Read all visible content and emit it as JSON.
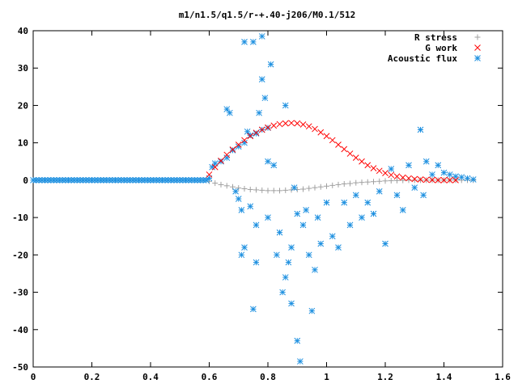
{
  "chart_data": {
    "type": "scatter",
    "title": "m1/n1.5/q1.5/r-+.40-j206/M0.1/512",
    "xlim": [
      0,
      1.6
    ],
    "ylim": [
      -50,
      40
    ],
    "xticks": [
      "0",
      "0.2",
      "0.4",
      "0.6",
      "0.8",
      "1",
      "1.2",
      "1.4",
      "1.6"
    ],
    "yticks": [
      "40",
      "30",
      "20",
      "10",
      "0",
      "-10",
      "-20",
      "-30",
      "-40",
      "-50"
    ],
    "legend_position": "top-right",
    "grid": false,
    "series": [
      {
        "name": "R stress",
        "marker": "plus",
        "color": "#a0a0a0",
        "points": [
          [
            0.6,
            -0.3
          ],
          [
            0.62,
            -0.8
          ],
          [
            0.64,
            -1.2
          ],
          [
            0.66,
            -1.5
          ],
          [
            0.68,
            -1.8
          ],
          [
            0.7,
            -2.1
          ],
          [
            0.72,
            -2.3
          ],
          [
            0.74,
            -2.5
          ],
          [
            0.76,
            -2.6
          ],
          [
            0.78,
            -2.7
          ],
          [
            0.8,
            -2.8
          ],
          [
            0.82,
            -2.8
          ],
          [
            0.84,
            -2.8
          ],
          [
            0.86,
            -2.7
          ],
          [
            0.88,
            -2.6
          ],
          [
            0.9,
            -2.5
          ],
          [
            0.92,
            -2.4
          ],
          [
            0.94,
            -2.2
          ],
          [
            0.96,
            -2.0
          ],
          [
            0.98,
            -1.8
          ],
          [
            1.0,
            -1.6
          ],
          [
            1.02,
            -1.4
          ],
          [
            1.04,
            -1.2
          ],
          [
            1.06,
            -1.0
          ],
          [
            1.08,
            -0.9
          ],
          [
            1.1,
            -0.7
          ],
          [
            1.12,
            -0.6
          ],
          [
            1.14,
            -0.5
          ],
          [
            1.16,
            -0.4
          ],
          [
            1.18,
            -0.3
          ],
          [
            1.2,
            -0.2
          ],
          [
            1.22,
            -0.15
          ],
          [
            1.24,
            -0.1
          ],
          [
            1.26,
            -0.05
          ],
          [
            1.28,
            0.0
          ],
          [
            1.3,
            0.0
          ],
          [
            1.32,
            0.0
          ],
          [
            1.34,
            0.0
          ],
          [
            1.36,
            0.0
          ],
          [
            1.38,
            0.0
          ],
          [
            1.4,
            0.0
          ],
          [
            1.42,
            0.0
          ],
          [
            1.44,
            0.0
          ],
          [
            1.46,
            0.0
          ],
          [
            1.48,
            0.0
          ],
          [
            1.5,
            0.0
          ]
        ]
      },
      {
        "name": "G work",
        "marker": "cross",
        "color": "#ff0000",
        "points": [
          [
            0.6,
            1.5
          ],
          [
            0.62,
            3.5
          ],
          [
            0.64,
            5.2
          ],
          [
            0.66,
            6.8
          ],
          [
            0.68,
            8.2
          ],
          [
            0.7,
            9.5
          ],
          [
            0.72,
            10.7
          ],
          [
            0.74,
            11.8
          ],
          [
            0.76,
            12.7
          ],
          [
            0.78,
            13.5
          ],
          [
            0.8,
            14.1
          ],
          [
            0.82,
            14.6
          ],
          [
            0.84,
            15.0
          ],
          [
            0.86,
            15.2
          ],
          [
            0.88,
            15.3
          ],
          [
            0.9,
            15.2
          ],
          [
            0.92,
            14.9
          ],
          [
            0.94,
            14.4
          ],
          [
            0.96,
            13.7
          ],
          [
            0.98,
            12.8
          ],
          [
            1.0,
            11.8
          ],
          [
            1.02,
            10.7
          ],
          [
            1.04,
            9.5
          ],
          [
            1.06,
            8.3
          ],
          [
            1.08,
            7.1
          ],
          [
            1.1,
            6.0
          ],
          [
            1.12,
            5.0
          ],
          [
            1.14,
            4.0
          ],
          [
            1.16,
            3.2
          ],
          [
            1.18,
            2.5
          ],
          [
            1.2,
            1.9
          ],
          [
            1.22,
            1.4
          ],
          [
            1.24,
            1.0
          ],
          [
            1.26,
            0.7
          ],
          [
            1.28,
            0.5
          ],
          [
            1.3,
            0.3
          ],
          [
            1.32,
            0.2
          ],
          [
            1.34,
            0.1
          ],
          [
            1.36,
            0.05
          ],
          [
            1.38,
            0.0
          ],
          [
            1.4,
            0.0
          ],
          [
            1.42,
            0.0
          ],
          [
            1.44,
            0.0
          ]
        ]
      },
      {
        "name": "Acoustic flux",
        "marker": "star",
        "color": "#1e90e0",
        "points": [
          [
            0.0,
            0.0
          ],
          [
            0.05,
            0.0
          ],
          [
            0.1,
            0.0
          ],
          [
            0.15,
            0.0
          ],
          [
            0.2,
            0.0
          ],
          [
            0.25,
            0.0
          ],
          [
            0.3,
            0.0
          ],
          [
            0.35,
            0.0
          ],
          [
            0.4,
            0.0
          ],
          [
            0.45,
            0.0
          ],
          [
            0.5,
            0.0
          ],
          [
            0.55,
            0.0
          ],
          [
            0.6,
            0.5
          ],
          [
            0.61,
            3.5
          ],
          [
            0.62,
            4.5
          ],
          [
            0.64,
            5.0
          ],
          [
            0.66,
            6.0
          ],
          [
            0.68,
            8.0
          ],
          [
            0.7,
            9.0
          ],
          [
            0.72,
            10.0
          ],
          [
            0.74,
            12.0
          ],
          [
            0.76,
            12.5
          ],
          [
            0.78,
            13.5
          ],
          [
            0.8,
            14.0
          ],
          [
            0.66,
            19.0
          ],
          [
            0.67,
            18.0
          ],
          [
            0.69,
            -3.0
          ],
          [
            0.7,
            -5.0
          ],
          [
            0.71,
            -8.0
          ],
          [
            0.71,
            -20.0
          ],
          [
            0.72,
            -18.0
          ],
          [
            0.72,
            37.0
          ],
          [
            0.73,
            13.0
          ],
          [
            0.74,
            -7.0
          ],
          [
            0.75,
            37.0
          ],
          [
            0.75,
            -34.5
          ],
          [
            0.76,
            -22.0
          ],
          [
            0.76,
            -12.0
          ],
          [
            0.77,
            18.0
          ],
          [
            0.78,
            38.5
          ],
          [
            0.78,
            27.0
          ],
          [
            0.79,
            22.0
          ],
          [
            0.8,
            -10.0
          ],
          [
            0.8,
            5.0
          ],
          [
            0.81,
            31.0
          ],
          [
            0.82,
            4.0
          ],
          [
            0.83,
            -20.0
          ],
          [
            0.84,
            -14.0
          ],
          [
            0.85,
            -30.0
          ],
          [
            0.86,
            -26.0
          ],
          [
            0.86,
            20.0
          ],
          [
            0.87,
            -22.0
          ],
          [
            0.88,
            -33.0
          ],
          [
            0.88,
            -18.0
          ],
          [
            0.89,
            -2.0
          ],
          [
            0.9,
            -9.0
          ],
          [
            0.9,
            -43.0
          ],
          [
            0.91,
            -48.5
          ],
          [
            0.92,
            -12.0
          ],
          [
            0.93,
            -8.0
          ],
          [
            0.94,
            -20.0
          ],
          [
            0.95,
            -35.0
          ],
          [
            0.96,
            -24.0
          ],
          [
            0.97,
            -10.0
          ],
          [
            0.98,
            -17.0
          ],
          [
            1.0,
            -6.0
          ],
          [
            1.02,
            -15.0
          ],
          [
            1.04,
            -18.0
          ],
          [
            1.06,
            -6.0
          ],
          [
            1.08,
            -12.0
          ],
          [
            1.1,
            -4.0
          ],
          [
            1.12,
            -10.0
          ],
          [
            1.14,
            -6.0
          ],
          [
            1.16,
            -9.0
          ],
          [
            1.18,
            -3.0
          ],
          [
            1.2,
            -17.0
          ],
          [
            1.22,
            3.0
          ],
          [
            1.24,
            -4.0
          ],
          [
            1.26,
            -8.0
          ],
          [
            1.28,
            4.0
          ],
          [
            1.3,
            -2.0
          ],
          [
            1.32,
            13.5
          ],
          [
            1.33,
            -4.0
          ],
          [
            1.34,
            5.0
          ],
          [
            1.36,
            1.5
          ],
          [
            1.38,
            4.0
          ],
          [
            1.4,
            2.0
          ],
          [
            1.42,
            1.5
          ],
          [
            1.44,
            1.0
          ],
          [
            1.46,
            0.8
          ],
          [
            1.48,
            0.5
          ],
          [
            1.5,
            0.2
          ]
        ]
      }
    ]
  }
}
